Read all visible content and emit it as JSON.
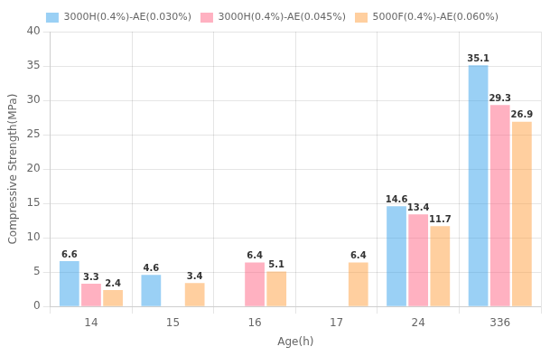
{
  "chart_data": {
    "type": "bar",
    "categories": [
      "14",
      "15",
      "16",
      "17",
      "24",
      "336"
    ],
    "series": [
      {
        "name": "3000H(0.4%)-AE(0.030%)",
        "values": [
          6.6,
          4.6,
          0,
          0,
          14.6,
          35.1
        ],
        "value_labels": [
          "6.6",
          "4.6",
          null,
          null,
          "14.6",
          "35.1"
        ]
      },
      {
        "name": "3000H(0.4%)-AE(0.045%)",
        "values": [
          3.3,
          0,
          6.4,
          0,
          13.4,
          29.3
        ],
        "value_labels": [
          "3.3",
          null,
          "6.4",
          null,
          "13.4",
          "29.3"
        ]
      },
      {
        "name": "5000F(0.4%)-AE(0.060%)",
        "values": [
          2.4,
          3.4,
          5.1,
          6.4,
          11.7,
          26.9
        ],
        "value_labels": [
          "2.4",
          "3.4",
          "5.1",
          "6.4",
          "11.7",
          "26.9"
        ]
      }
    ],
    "xlabel": "Age(h)",
    "ylabel": "Compressive Strength(MPa)",
    "ylim": [
      0,
      40
    ],
    "yticks": [
      0,
      5,
      10,
      15,
      20,
      25,
      30,
      35,
      40
    ],
    "grid": true,
    "legend": "top",
    "data_labels": true
  }
}
